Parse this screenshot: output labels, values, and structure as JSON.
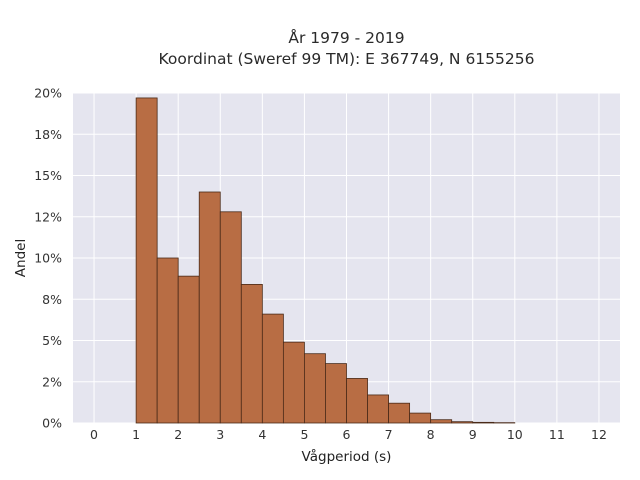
{
  "chart_data": {
    "type": "bar",
    "title": "År 1979 - 2019",
    "subtitle": "Koordinat (Sweref 99 TM): E 367749, N 6155256",
    "xlabel": "Vågperiod (s)",
    "ylabel": "Andel",
    "xlim": [
      -0.5,
      12.5
    ],
    "ylim": [
      0,
      20
    ],
    "x_ticks": [
      0,
      1,
      2,
      3,
      4,
      5,
      6,
      7,
      8,
      9,
      10,
      11,
      12
    ],
    "y_ticks": [
      0,
      2.5,
      5,
      7.5,
      10,
      12.5,
      15,
      17.5,
      20
    ],
    "y_tick_labels": [
      "0%",
      "2%",
      "5%",
      "8%",
      "10%",
      "12%",
      "15%",
      "18%",
      "20%"
    ],
    "bin_width": 0.5,
    "bins": [
      {
        "x0": 1.0,
        "x1": 1.5,
        "value": 19.7
      },
      {
        "x0": 1.5,
        "x1": 2.0,
        "value": 10.0
      },
      {
        "x0": 2.0,
        "x1": 2.5,
        "value": 8.9
      },
      {
        "x0": 2.5,
        "x1": 3.0,
        "value": 14.0
      },
      {
        "x0": 3.0,
        "x1": 3.5,
        "value": 12.8
      },
      {
        "x0": 3.5,
        "x1": 4.0,
        "value": 8.4
      },
      {
        "x0": 4.0,
        "x1": 4.5,
        "value": 6.6
      },
      {
        "x0": 4.5,
        "x1": 5.0,
        "value": 4.9
      },
      {
        "x0": 5.0,
        "x1": 5.5,
        "value": 4.2
      },
      {
        "x0": 5.5,
        "x1": 6.0,
        "value": 3.6
      },
      {
        "x0": 6.0,
        "x1": 6.5,
        "value": 2.7
      },
      {
        "x0": 6.5,
        "x1": 7.0,
        "value": 1.7
      },
      {
        "x0": 7.0,
        "x1": 7.5,
        "value": 1.2
      },
      {
        "x0": 7.5,
        "x1": 8.0,
        "value": 0.6
      },
      {
        "x0": 8.0,
        "x1": 8.5,
        "value": 0.2
      },
      {
        "x0": 8.5,
        "x1": 9.0,
        "value": 0.08
      },
      {
        "x0": 9.0,
        "x1": 9.5,
        "value": 0.04
      },
      {
        "x0": 9.5,
        "x1": 10.0,
        "value": 0.02
      }
    ],
    "grid": true,
    "colors": {
      "bar_fill": "#b86d44",
      "bar_edge": "#4a2a18",
      "plot_bg": "#e5e5ef",
      "grid": "#ffffff"
    }
  }
}
